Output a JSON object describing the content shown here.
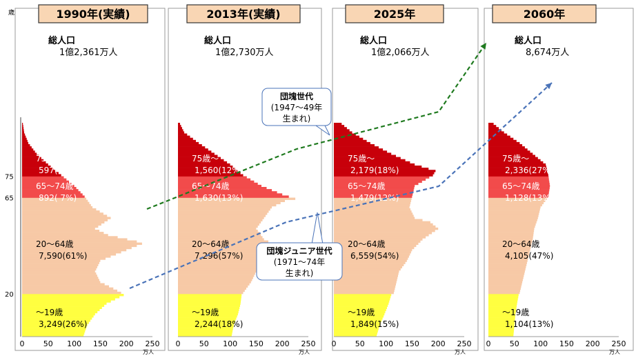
{
  "colors": {
    "age75plus": "#c8000a",
    "age65_74": "#f24b4b",
    "age20_64": "#f7c9a6",
    "age0_19": "#ffff40",
    "title_bg": "#f9d6b4",
    "dantai_arrow": "#1f7a1f",
    "junior_arrow": "#4a73b8",
    "callout_border": "#4a73b8"
  },
  "chart_data": {
    "type": "bar",
    "subtype": "population-pyramid-half",
    "age_axis_unit": "歳",
    "age_ticks": [
      "75",
      "65",
      "20"
    ],
    "x_ticks": [
      "0",
      "50",
      "100",
      "150",
      "200",
      "250"
    ],
    "x_unit": "万人",
    "xlim": [
      0,
      250
    ],
    "bands": [
      "75歳～",
      "65～74歳",
      "20～64歳",
      "～19歳"
    ],
    "panels": [
      {
        "title": "1990年(実績)",
        "total_label": "総人口",
        "total_value": "1億2,361万人",
        "annotations": [
          {
            "band": "75+",
            "label": "75歳～",
            "value": "597( 5%)"
          },
          {
            "band": "65-74",
            "label": "65～74歳",
            "value": "892( 7%)"
          },
          {
            "band": "20-64",
            "label": "20～64歳",
            "value": "7,590(61%)"
          },
          {
            "band": "0-19",
            "label": "～19歳",
            "value": "3,249(26%)"
          }
        ],
        "profile": [
          [
            0,
            118
          ],
          [
            5,
            125
          ],
          [
            10,
            140
          ],
          [
            15,
            162
          ],
          [
            19,
            195
          ],
          [
            20,
            190
          ],
          [
            22,
            175
          ],
          [
            25,
            150
          ],
          [
            30,
            140
          ],
          [
            35,
            150
          ],
          [
            40,
            200
          ],
          [
            43,
            230
          ],
          [
            44,
            220
          ],
          [
            47,
            165
          ],
          [
            50,
            140
          ],
          [
            55,
            170
          ],
          [
            60,
            135
          ],
          [
            65,
            120
          ],
          [
            70,
            100
          ],
          [
            75,
            75
          ],
          [
            80,
            50
          ],
          [
            85,
            28
          ],
          [
            90,
            12
          ],
          [
            95,
            4
          ],
          [
            100,
            1
          ]
        ]
      },
      {
        "title": "2013年(実績)",
        "total_label": "総人口",
        "total_value": "1億2,730万人",
        "annotations": [
          {
            "band": "75+",
            "label": "75歳～",
            "value": "1,560(12%)"
          },
          {
            "band": "65-74",
            "label": "65～74歳",
            "value": "1,630(13%)"
          },
          {
            "band": "20-64",
            "label": "20～64歳",
            "value": "7,296(57%)"
          },
          {
            "band": "0-19",
            "label": "～19歳",
            "value": "2,244(18%)"
          }
        ],
        "profile": [
          [
            0,
            103
          ],
          [
            5,
            107
          ],
          [
            10,
            115
          ],
          [
            15,
            120
          ],
          [
            19,
            122
          ],
          [
            20,
            125
          ],
          [
            25,
            140
          ],
          [
            30,
            150
          ],
          [
            35,
            175
          ],
          [
            39,
            200
          ],
          [
            42,
            190
          ],
          [
            45,
            165
          ],
          [
            50,
            150
          ],
          [
            55,
            165
          ],
          [
            60,
            180
          ],
          [
            63,
            205
          ],
          [
            64,
            225
          ],
          [
            66,
            200
          ],
          [
            70,
            160
          ],
          [
            75,
            125
          ],
          [
            80,
            100
          ],
          [
            85,
            70
          ],
          [
            90,
            40
          ],
          [
            95,
            12
          ],
          [
            100,
            2
          ]
        ]
      },
      {
        "title": "2025年",
        "total_label": "総人口",
        "total_value": "1億2,066万人",
        "annotations": [
          {
            "band": "75+",
            "label": "75歳～",
            "value": "2,179(18%)"
          },
          {
            "band": "65-74",
            "label": "65～74歳",
            "value": "1,479(12%)"
          },
          {
            "band": "20-64",
            "label": "20～64歳",
            "value": "6,559(54%)"
          },
          {
            "band": "0-19",
            "label": "～19歳",
            "value": "1,849(15%)"
          }
        ],
        "profile": [
          [
            0,
            82
          ],
          [
            5,
            88
          ],
          [
            10,
            97
          ],
          [
            15,
            105
          ],
          [
            19,
            110
          ],
          [
            20,
            115
          ],
          [
            25,
            120
          ],
          [
            30,
            125
          ],
          [
            35,
            140
          ],
          [
            40,
            150
          ],
          [
            45,
            170
          ],
          [
            50,
            200
          ],
          [
            53,
            185
          ],
          [
            55,
            155
          ],
          [
            60,
            145
          ],
          [
            65,
            150
          ],
          [
            70,
            155
          ],
          [
            75,
            190
          ],
          [
            77,
            195
          ],
          [
            80,
            155
          ],
          [
            85,
            110
          ],
          [
            90,
            70
          ],
          [
            95,
            35
          ],
          [
            100,
            10
          ]
        ]
      },
      {
        "title": "2060年",
        "total_label": "総人口",
        "total_value": "8,674万人",
        "annotations": [
          {
            "band": "75+",
            "label": "75歳～",
            "value": "2,336(27%)"
          },
          {
            "band": "65-74",
            "label": "65～74歳",
            "value": "1,128(13%)"
          },
          {
            "band": "20-64",
            "label": "20～64歳",
            "value": "4,105(47%)"
          },
          {
            "band": "0-19",
            "label": "～19歳",
            "value": "1,104(13%)"
          }
        ],
        "profile": [
          [
            0,
            48
          ],
          [
            5,
            50
          ],
          [
            10,
            52
          ],
          [
            15,
            55
          ],
          [
            19,
            58
          ],
          [
            20,
            60
          ],
          [
            25,
            65
          ],
          [
            30,
            70
          ],
          [
            35,
            75
          ],
          [
            40,
            80
          ],
          [
            45,
            85
          ],
          [
            50,
            88
          ],
          [
            55,
            95
          ],
          [
            60,
            100
          ],
          [
            65,
            115
          ],
          [
            70,
            118
          ],
          [
            75,
            115
          ],
          [
            80,
            110
          ],
          [
            85,
            85
          ],
          [
            90,
            60
          ],
          [
            95,
            30
          ],
          [
            100,
            5
          ]
        ]
      }
    ],
    "callouts": [
      {
        "name": "dantai",
        "lines": [
          "団塊世代",
          "(1947～49年",
          "生まれ)"
        ]
      },
      {
        "name": "junior",
        "lines": [
          "団塊ジュニア世代",
          "(1971～74年",
          "生まれ)"
        ]
      }
    ]
  }
}
